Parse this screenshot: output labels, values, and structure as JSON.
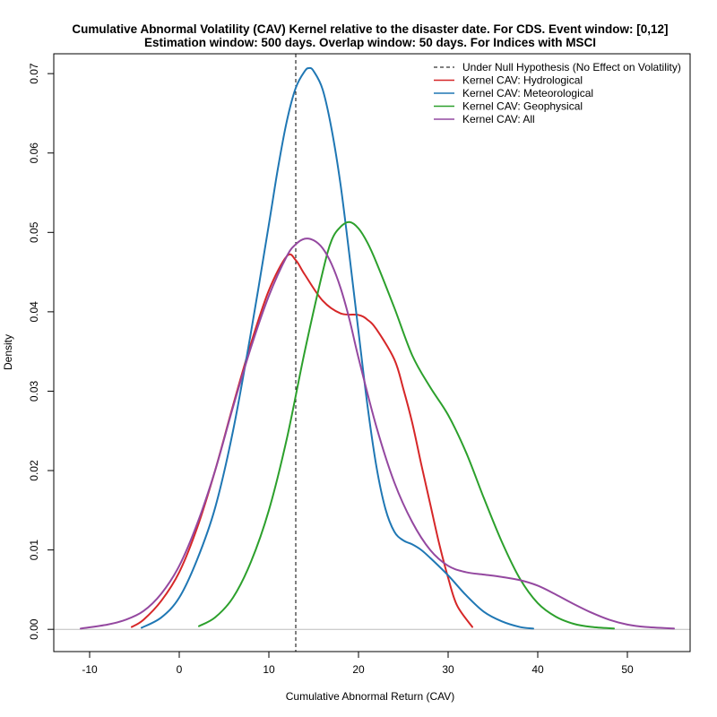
{
  "chart_data": {
    "type": "line",
    "title": [
      "Cumulative Abnormal Volatility (CAV) Kernel relative to the disaster date. For CDS. Event window: [0,12]",
      "Estimation window: 500 days. Overlap window: 50 days. For Indices with MSCI"
    ],
    "xlabel": "Cumulative Abnormal Return (CAV)",
    "ylabel": "Density",
    "xlim": [
      -14,
      57
    ],
    "ylim": [
      -0.0028,
      0.0725
    ],
    "xticks": [
      -10,
      0,
      10,
      20,
      30,
      40,
      50
    ],
    "yticks": [
      0.0,
      0.01,
      0.02,
      0.03,
      0.04,
      0.05,
      0.06,
      0.07
    ],
    "ytick_labels": [
      "0.00",
      "0.01",
      "0.02",
      "0.03",
      "0.04",
      "0.05",
      "0.06",
      "0.07"
    ],
    "baseline": 0,
    "null_hypothesis_x": 13,
    "legend_position": "top-right",
    "legend": [
      {
        "label": "Under Null Hypothesis (No Effect on Volatility)",
        "color": "#000000",
        "style": "dashed"
      },
      {
        "label": "Kernel CAV: Hydrological",
        "color": "#d62728",
        "style": "solid"
      },
      {
        "label": "Kernel CAV: Meteorological",
        "color": "#1f77b4",
        "style": "solid"
      },
      {
        "label": "Kernel CAV: Geophysical",
        "color": "#2ca02c",
        "style": "solid"
      },
      {
        "label": "Kernel CAV: All",
        "color": "#9448a0",
        "style": "solid"
      }
    ],
    "series": [
      {
        "name": "Kernel CAV: Hydrological",
        "color": "#d62728",
        "x": [
          -5.3,
          -4,
          -2,
          0,
          2,
          4,
          6,
          8,
          10,
          12,
          13,
          14,
          16,
          18,
          20,
          21,
          22,
          24,
          25,
          26,
          27,
          28,
          29,
          30,
          31,
          32.7
        ],
        "y": [
          0.0003,
          0.0012,
          0.0036,
          0.0072,
          0.0128,
          0.02,
          0.0282,
          0.036,
          0.0427,
          0.047,
          0.0465,
          0.0447,
          0.0414,
          0.0398,
          0.0396,
          0.039,
          0.0378,
          0.034,
          0.0303,
          0.026,
          0.0208,
          0.0158,
          0.0108,
          0.0065,
          0.003,
          0.0003
        ]
      },
      {
        "name": "Kernel CAV: Meteorological",
        "color": "#1f77b4",
        "x": [
          -4.2,
          -2,
          0,
          2,
          4,
          6,
          8,
          10,
          11,
          12,
          13,
          14,
          14.5,
          15,
          16,
          17,
          18,
          19,
          20,
          21,
          22,
          23,
          24,
          25,
          26,
          27,
          28,
          30,
          32,
          34,
          36,
          38,
          39.5
        ],
        "y": [
          0.0002,
          0.0015,
          0.004,
          0.0088,
          0.0153,
          0.025,
          0.0374,
          0.051,
          0.058,
          0.064,
          0.0682,
          0.0703,
          0.0707,
          0.0703,
          0.068,
          0.063,
          0.056,
          0.047,
          0.0375,
          0.0282,
          0.0205,
          0.0152,
          0.0123,
          0.0112,
          0.0107,
          0.01,
          0.009,
          0.0068,
          0.0043,
          0.0022,
          0.001,
          0.0003,
          0.0001
        ]
      },
      {
        "name": "Kernel CAV: Geophysical",
        "color": "#2ca02c",
        "x": [
          2.2,
          4,
          6,
          8,
          10,
          12,
          14,
          16,
          17,
          18,
          19,
          20,
          21,
          22,
          24,
          26,
          28,
          30,
          32,
          34,
          36,
          38,
          40,
          42,
          44,
          46,
          48.5
        ],
        "y": [
          0.0004,
          0.0015,
          0.004,
          0.0085,
          0.015,
          0.024,
          0.035,
          0.045,
          0.049,
          0.0507,
          0.0513,
          0.0505,
          0.0487,
          0.0462,
          0.0405,
          0.0345,
          0.0305,
          0.027,
          0.0223,
          0.0165,
          0.011,
          0.0064,
          0.0033,
          0.0016,
          0.0007,
          0.0003,
          0.0001
        ]
      },
      {
        "name": "Kernel CAV: All",
        "color": "#9448a0",
        "x": [
          -11,
          -8,
          -6,
          -4,
          -2,
          0,
          2,
          4,
          6,
          8,
          10,
          12,
          13,
          14,
          15,
          16,
          17,
          18,
          19,
          20,
          22,
          24,
          26,
          28,
          30,
          32,
          34,
          36,
          38,
          40,
          42,
          44,
          46,
          48,
          50,
          52,
          55.2
        ],
        "y": [
          0.0001,
          0.0006,
          0.0012,
          0.0023,
          0.0045,
          0.008,
          0.0133,
          0.02,
          0.028,
          0.0355,
          0.042,
          0.047,
          0.0485,
          0.0492,
          0.049,
          0.048,
          0.046,
          0.043,
          0.039,
          0.0342,
          0.0255,
          0.0185,
          0.0135,
          0.01,
          0.008,
          0.0072,
          0.0069,
          0.0066,
          0.0062,
          0.0055,
          0.0044,
          0.0032,
          0.0021,
          0.0012,
          0.0006,
          0.0003,
          0.0001
        ]
      }
    ]
  }
}
